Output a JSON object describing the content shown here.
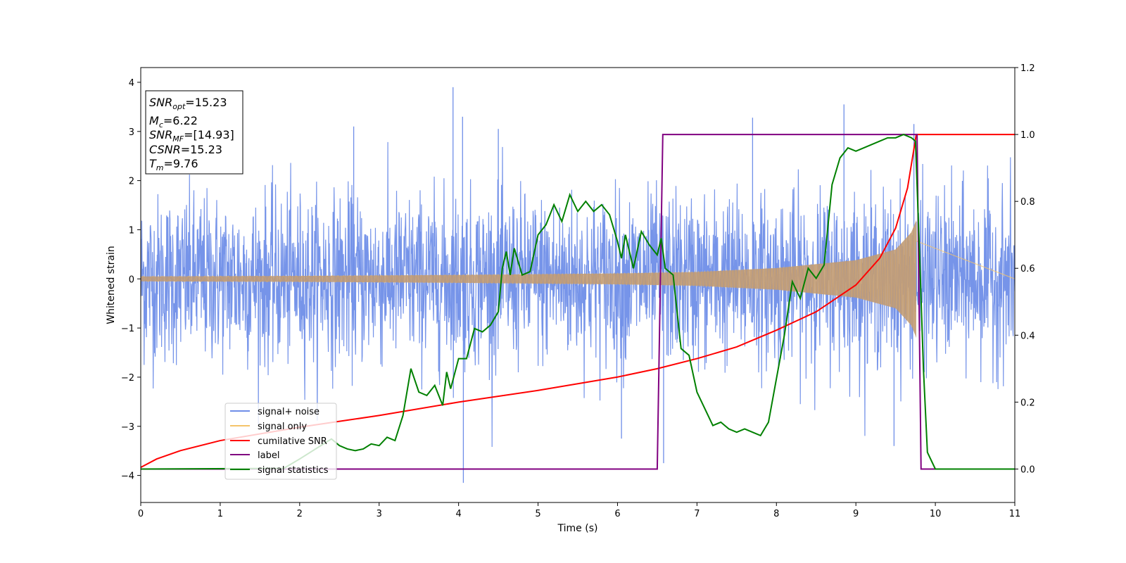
{
  "chart_data": {
    "type": "line",
    "xlabel": "Time (s)",
    "ylabel": "Whitened strain",
    "xlim": [
      0,
      11
    ],
    "ylim_left": [
      -4.55,
      4.3
    ],
    "ylim_right": [
      -0.1,
      1.2
    ],
    "x_ticks": [
      0,
      1,
      2,
      3,
      4,
      5,
      6,
      7,
      8,
      9,
      10,
      11
    ],
    "y_ticks_left": [
      -4,
      -3,
      -2,
      -1,
      0,
      1,
      2,
      3,
      4
    ],
    "y_ticks_right": [
      0.0,
      0.2,
      0.4,
      0.6,
      0.8,
      1.0,
      1.2
    ],
    "grid": false,
    "legend_position": "lower-left",
    "info_box": {
      "snr_opt": {
        "sym": "SNR",
        "sub": "opt",
        "value": "=15.23"
      },
      "mc": {
        "sym": "M",
        "sub": "c",
        "value": "=6.22"
      },
      "snr_mf": {
        "sym": "SNR",
        "sub": "MF",
        "value": "=[14.93]"
      },
      "csnr": {
        "sym": "CSNR",
        "sub": "",
        "value": "=15.23"
      },
      "tm": {
        "sym": "T",
        "sub": "m",
        "value": "=9.76"
      }
    },
    "series": [
      {
        "name": "signal+ noise",
        "color": "#6f8ee8",
        "axis": "left",
        "noise_std": 0.85,
        "spikes": [
          [
            3.93,
            3.9
          ],
          [
            4.06,
            -4.15
          ],
          [
            9.73,
            3.15
          ],
          [
            8.85,
            3.55
          ],
          [
            7.7,
            3.28
          ],
          [
            6.58,
            -3.75
          ],
          [
            9.48,
            -3.4
          ],
          [
            6.05,
            -3.25
          ],
          [
            2.68,
            3.1
          ],
          [
            4.5,
            3.05
          ],
          [
            4.05,
            3.3
          ]
        ]
      },
      {
        "name": "signal only",
        "color": "#f5c46a",
        "axis": "left",
        "chirp_end": 9.76,
        "amplitude_points": [
          [
            0,
            0.05
          ],
          [
            2,
            0.06
          ],
          [
            4,
            0.08
          ],
          [
            6,
            0.11
          ],
          [
            7,
            0.14
          ],
          [
            8,
            0.22
          ],
          [
            9,
            0.38
          ],
          [
            9.5,
            0.6
          ],
          [
            9.7,
            0.95
          ],
          [
            9.76,
            1.2
          ]
        ]
      },
      {
        "name": "cumilative SNR",
        "color": "#ff0000",
        "axis": "right",
        "points": [
          [
            0,
            0.005
          ],
          [
            0.2,
            0.03
          ],
          [
            0.5,
            0.055
          ],
          [
            1,
            0.085
          ],
          [
            2,
            0.125
          ],
          [
            3,
            0.16
          ],
          [
            4,
            0.2
          ],
          [
            5,
            0.235
          ],
          [
            6,
            0.275
          ],
          [
            6.5,
            0.3
          ],
          [
            7,
            0.33
          ],
          [
            7.5,
            0.365
          ],
          [
            8,
            0.415
          ],
          [
            8.5,
            0.47
          ],
          [
            9,
            0.55
          ],
          [
            9.3,
            0.63
          ],
          [
            9.5,
            0.72
          ],
          [
            9.65,
            0.84
          ],
          [
            9.76,
            1.0
          ],
          [
            11,
            1.0
          ]
        ]
      },
      {
        "name": "label",
        "color": "#800080",
        "axis": "right",
        "points": [
          [
            0,
            0
          ],
          [
            6.5,
            0
          ],
          [
            6.57,
            1.0
          ],
          [
            9.77,
            1.0
          ],
          [
            9.82,
            0
          ],
          [
            11,
            0
          ]
        ]
      },
      {
        "name": "signal statistics",
        "color": "#008000",
        "axis": "right",
        "points": [
          [
            0,
            0.0
          ],
          [
            1.8,
            0.002
          ],
          [
            2.0,
            0.03
          ],
          [
            2.2,
            0.06
          ],
          [
            2.4,
            0.09
          ],
          [
            2.5,
            0.07
          ],
          [
            2.6,
            0.06
          ],
          [
            2.7,
            0.055
          ],
          [
            2.8,
            0.06
          ],
          [
            2.9,
            0.075
          ],
          [
            3.0,
            0.07
          ],
          [
            3.1,
            0.095
          ],
          [
            3.2,
            0.085
          ],
          [
            3.3,
            0.16
          ],
          [
            3.4,
            0.3
          ],
          [
            3.5,
            0.23
          ],
          [
            3.6,
            0.22
          ],
          [
            3.7,
            0.25
          ],
          [
            3.8,
            0.19
          ],
          [
            3.85,
            0.29
          ],
          [
            3.9,
            0.24
          ],
          [
            4.0,
            0.33
          ],
          [
            4.1,
            0.33
          ],
          [
            4.2,
            0.42
          ],
          [
            4.3,
            0.41
          ],
          [
            4.4,
            0.43
          ],
          [
            4.5,
            0.47
          ],
          [
            4.55,
            0.6
          ],
          [
            4.6,
            0.65
          ],
          [
            4.65,
            0.58
          ],
          [
            4.7,
            0.66
          ],
          [
            4.8,
            0.58
          ],
          [
            4.9,
            0.59
          ],
          [
            5.0,
            0.7
          ],
          [
            5.1,
            0.73
          ],
          [
            5.2,
            0.79
          ],
          [
            5.3,
            0.74
          ],
          [
            5.4,
            0.82
          ],
          [
            5.5,
            0.77
          ],
          [
            5.6,
            0.8
          ],
          [
            5.7,
            0.77
          ],
          [
            5.8,
            0.79
          ],
          [
            5.9,
            0.76
          ],
          [
            6.0,
            0.68
          ],
          [
            6.05,
            0.63
          ],
          [
            6.1,
            0.7
          ],
          [
            6.2,
            0.6
          ],
          [
            6.3,
            0.71
          ],
          [
            6.4,
            0.67
          ],
          [
            6.5,
            0.64
          ],
          [
            6.55,
            0.69
          ],
          [
            6.6,
            0.6
          ],
          [
            6.7,
            0.58
          ],
          [
            6.8,
            0.36
          ],
          [
            6.9,
            0.34
          ],
          [
            7.0,
            0.23
          ],
          [
            7.1,
            0.18
          ],
          [
            7.2,
            0.13
          ],
          [
            7.3,
            0.14
          ],
          [
            7.4,
            0.12
          ],
          [
            7.5,
            0.11
          ],
          [
            7.6,
            0.12
          ],
          [
            7.7,
            0.11
          ],
          [
            7.8,
            0.1
          ],
          [
            7.9,
            0.14
          ],
          [
            8.0,
            0.27
          ],
          [
            8.1,
            0.4
          ],
          [
            8.2,
            0.56
          ],
          [
            8.3,
            0.51
          ],
          [
            8.4,
            0.6
          ],
          [
            8.5,
            0.57
          ],
          [
            8.6,
            0.61
          ],
          [
            8.7,
            0.85
          ],
          [
            8.8,
            0.93
          ],
          [
            8.9,
            0.96
          ],
          [
            9.0,
            0.95
          ],
          [
            9.1,
            0.96
          ],
          [
            9.2,
            0.97
          ],
          [
            9.3,
            0.98
          ],
          [
            9.4,
            0.99
          ],
          [
            9.5,
            0.99
          ],
          [
            9.6,
            1.0
          ],
          [
            9.7,
            0.99
          ],
          [
            9.75,
            0.98
          ],
          [
            9.8,
            0.65
          ],
          [
            9.85,
            0.3
          ],
          [
            9.9,
            0.05
          ],
          [
            10.0,
            0.0
          ],
          [
            11,
            0.0
          ]
        ]
      }
    ]
  }
}
